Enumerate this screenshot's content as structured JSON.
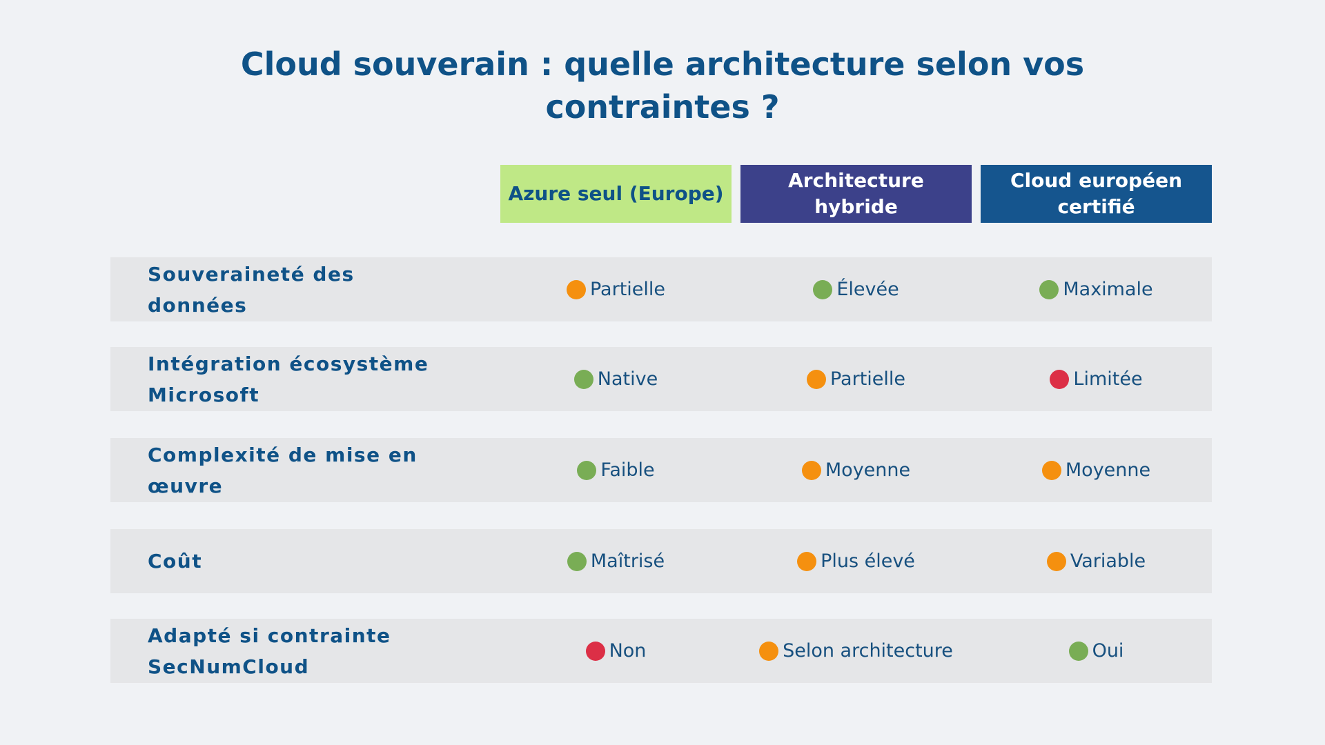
{
  "title": {
    "line1": "Cloud souverain : quelle architecture selon vos",
    "line2": "contraintes ?"
  },
  "columns": [
    {
      "label": "Azure seul (Europe)",
      "color": "#bfe886"
    },
    {
      "label": "Architecture hybride",
      "color": "#3c418a"
    },
    {
      "label": "Cloud européen certifié",
      "color": "#15558e"
    }
  ],
  "status_colors": {
    "green": "#79ad55",
    "orange": "#f5900f",
    "red": "#dc2f46"
  },
  "rows": [
    {
      "label": "Souveraineté des données",
      "cells": [
        {
          "text": "Partielle",
          "status": "orange"
        },
        {
          "text": "Élevée",
          "status": "green"
        },
        {
          "text": "Maximale",
          "status": "green"
        }
      ]
    },
    {
      "label": "Intégration écosystème Microsoft",
      "cells": [
        {
          "text": "Native",
          "status": "green"
        },
        {
          "text": "Partielle",
          "status": "orange"
        },
        {
          "text": "Limitée",
          "status": "red"
        }
      ]
    },
    {
      "label": "Complexité de mise en œuvre",
      "cells": [
        {
          "text": "Faible",
          "status": "green"
        },
        {
          "text": "Moyenne",
          "status": "orange"
        },
        {
          "text": "Moyenne",
          "status": "orange"
        }
      ]
    },
    {
      "label": "Coût",
      "cells": [
        {
          "text": "Maîtrisé",
          "status": "green"
        },
        {
          "text": "Plus élevé",
          "status": "orange"
        },
        {
          "text": "Variable",
          "status": "orange"
        }
      ]
    },
    {
      "label": "Adapté si contrainte SecNumCloud",
      "cells": [
        {
          "text": "Non",
          "status": "red"
        },
        {
          "text": "Selon architecture",
          "status": "orange"
        },
        {
          "text": "Oui",
          "status": "green"
        }
      ]
    }
  ]
}
